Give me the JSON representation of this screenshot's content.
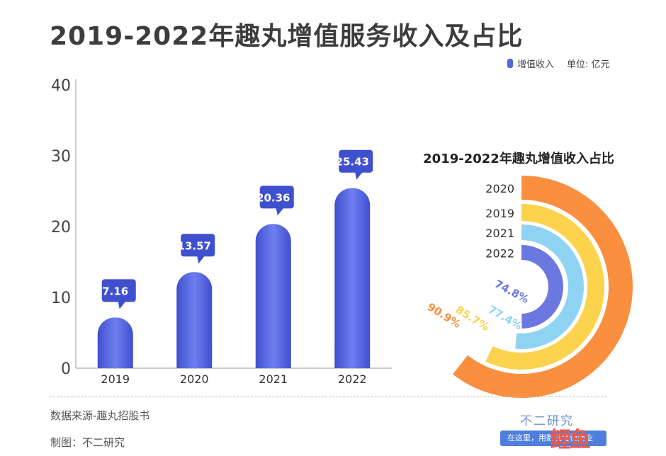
{
  "title": "2019-2022年趣丸增值服务收入及占比",
  "legend": {
    "series_name": "增值收入",
    "unit": "单位: 亿元",
    "color": "#5566dd"
  },
  "chart_data": [
    {
      "type": "bar",
      "title": "",
      "categories": [
        "2019",
        "2020",
        "2021",
        "2022"
      ],
      "series": [
        {
          "name": "增值收入",
          "values": [
            7.16,
            13.57,
            20.36,
            25.43
          ]
        }
      ],
      "data_labels": [
        "7.16",
        "13.57",
        "20.36",
        "25.43"
      ],
      "y_ticks": [
        "0",
        "10",
        "20",
        "30",
        "40"
      ],
      "ylim": [
        0,
        40
      ],
      "xlabel": "",
      "ylabel": "",
      "grid": false,
      "bar_color": "#5566dd"
    },
    {
      "type": "radial_bar",
      "title": "2019-2022年趣丸增值收入占比",
      "categories": [
        "2020",
        "2019",
        "2021",
        "2022"
      ],
      "values": [
        90.9,
        85.7,
        77.4,
        74.8
      ],
      "value_labels": [
        "90.9%",
        "85.7%",
        "77.4%",
        "74.8%"
      ],
      "colors": [
        "#f98f3f",
        "#fcd34d",
        "#8fd3f2",
        "#6a78e0"
      ]
    }
  ],
  "footer": {
    "source": "数据来源-趣丸招股书",
    "author": "制图：不二研究"
  },
  "watermark": {
    "brand": "不二研究",
    "slogan": "在这里，用数据看懂商业",
    "logo_text": "鲤鱼"
  }
}
